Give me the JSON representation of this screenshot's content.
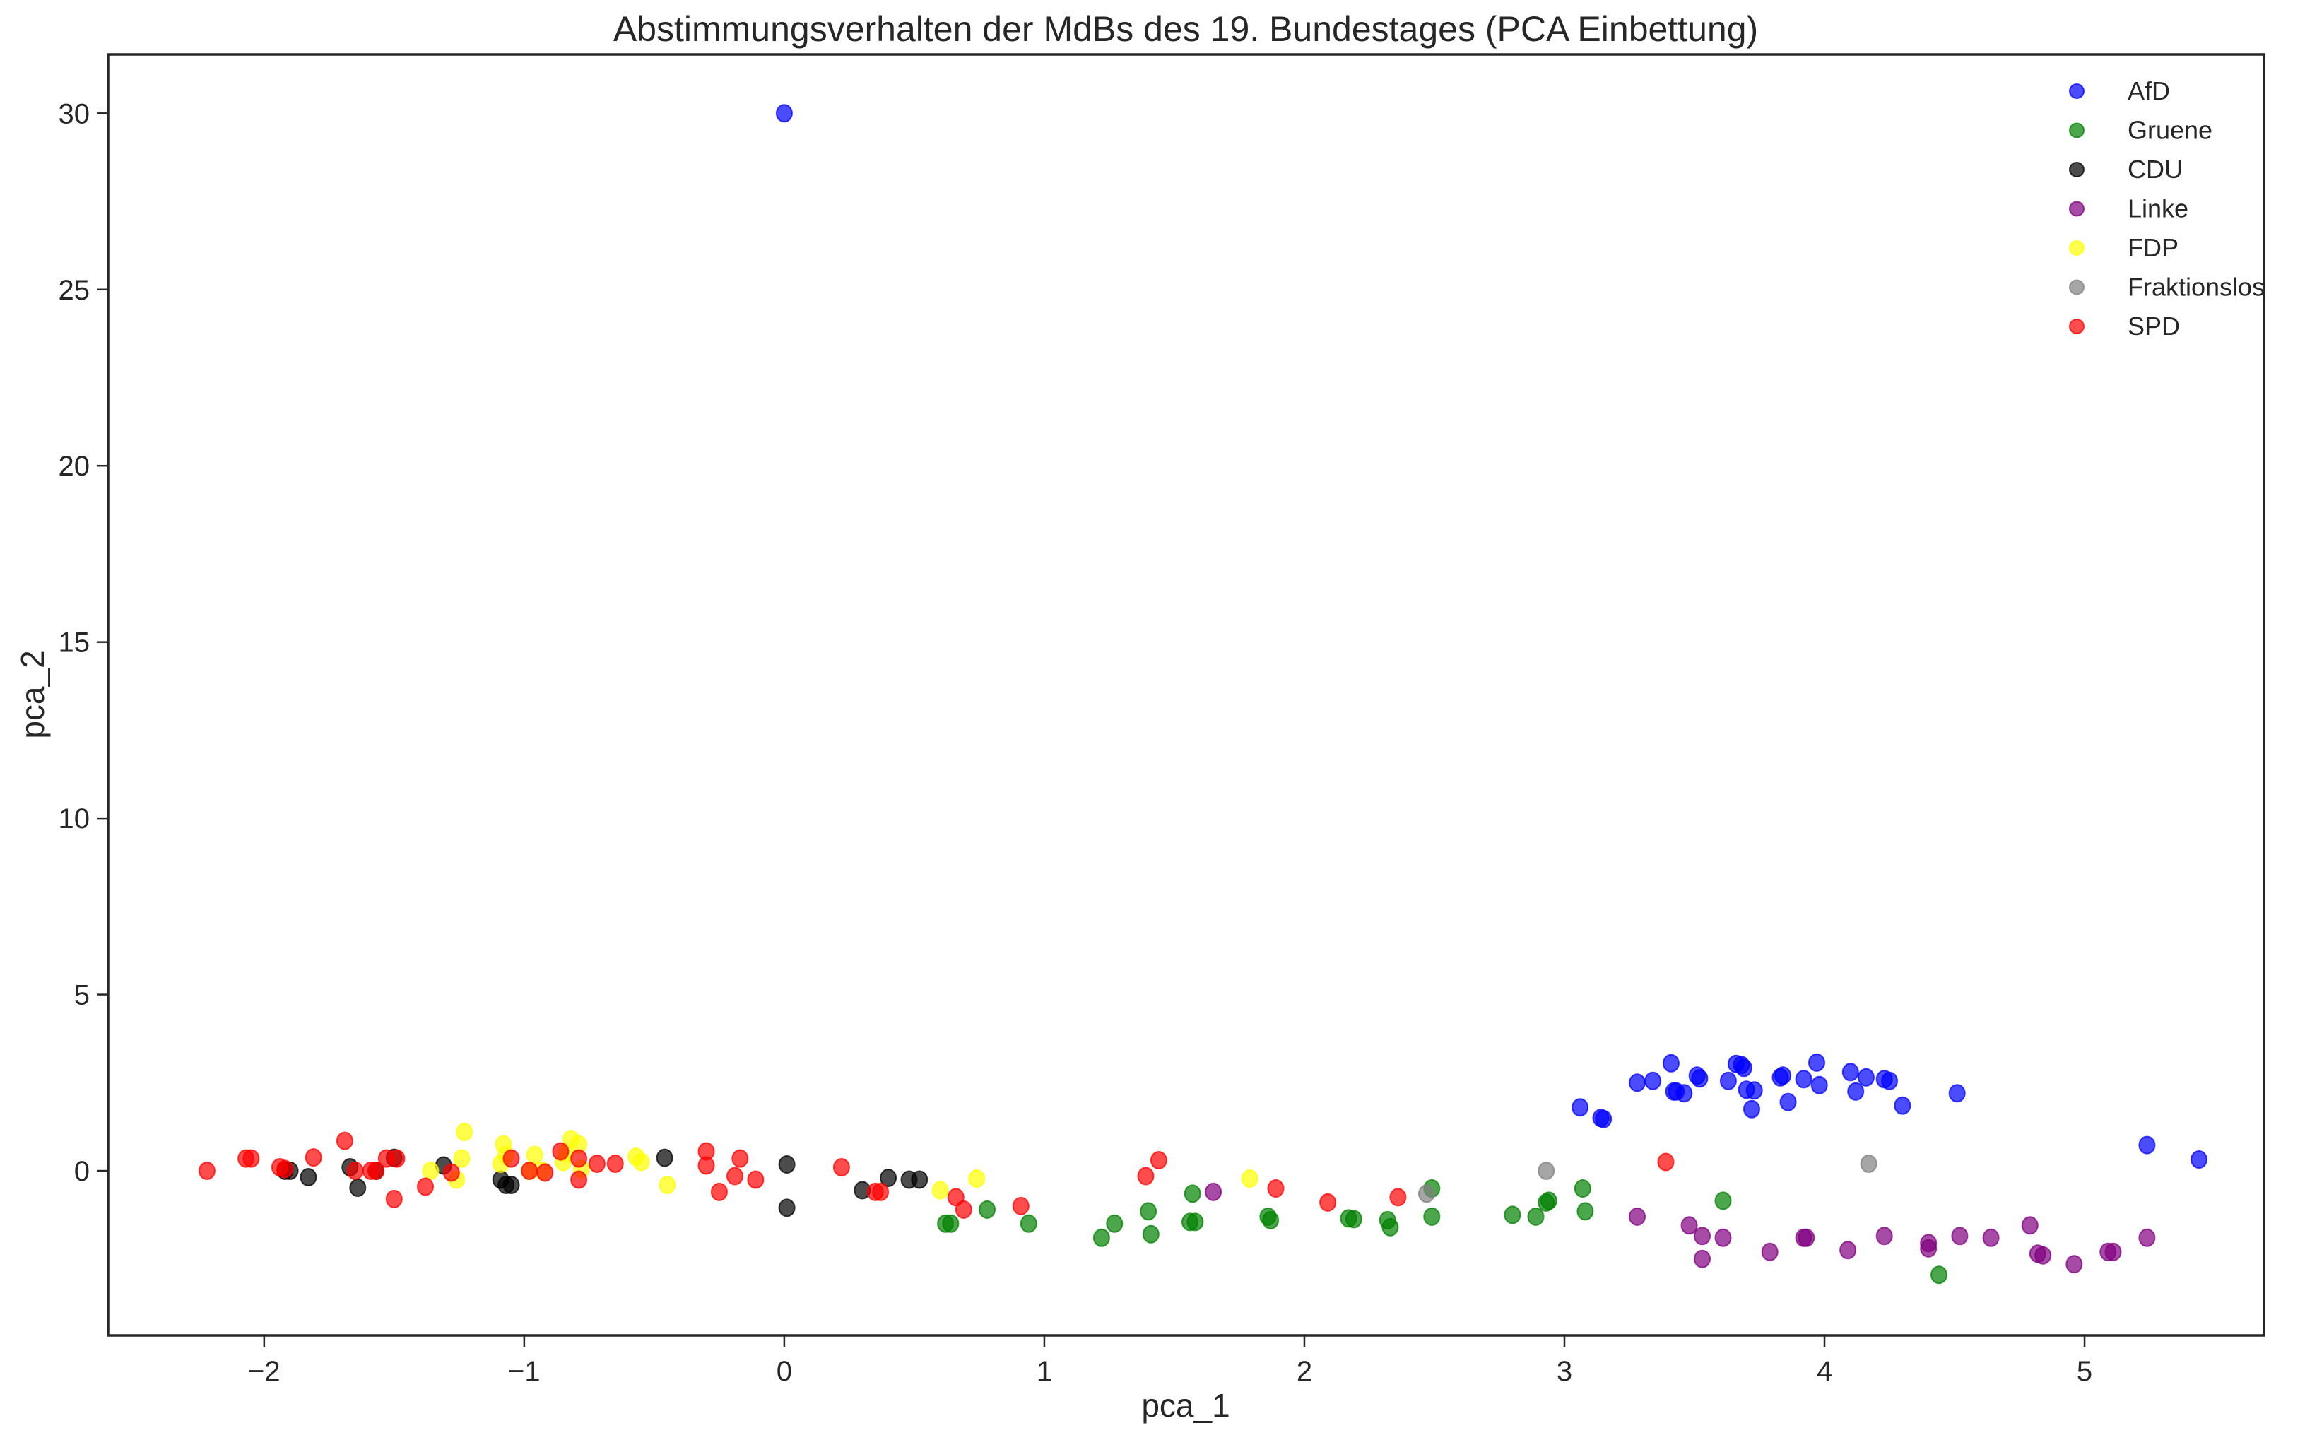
{
  "chart_data": {
    "type": "scatter",
    "title": "Abstimmungsverhalten der MdBs des 19. Bundestages (PCA Einbettung)",
    "xlabel": "pca_1",
    "ylabel": "pca_2",
    "xlim": [
      -2.6,
      5.69
    ],
    "ylim": [
      -4.67,
      31.67
    ],
    "x_ticks": [
      -2,
      -1,
      0,
      1,
      2,
      3,
      4,
      5
    ],
    "x_tick_labels": [
      "−2",
      "−1",
      "0",
      "1",
      "2",
      "3",
      "4",
      "5"
    ],
    "y_ticks": [
      0,
      5,
      10,
      15,
      20,
      25,
      30
    ],
    "y_tick_labels": [
      "0",
      "5",
      "10",
      "15",
      "20",
      "25",
      "30"
    ],
    "grid": false,
    "legend_position": "upper right",
    "marker_alpha": 0.7,
    "series": [
      {
        "name": "AfD",
        "color": "#0000ff",
        "points": [
          [
            0.0,
            30.0
          ],
          [
            3.06,
            1.8
          ],
          [
            3.14,
            1.5
          ],
          [
            3.15,
            1.47
          ],
          [
            3.28,
            2.5
          ],
          [
            3.34,
            2.55
          ],
          [
            3.41,
            3.05
          ],
          [
            3.42,
            2.25
          ],
          [
            3.43,
            2.25
          ],
          [
            3.46,
            2.2
          ],
          [
            3.51,
            2.7
          ],
          [
            3.52,
            2.62
          ],
          [
            3.63,
            2.55
          ],
          [
            3.66,
            3.03
          ],
          [
            3.68,
            3.0
          ],
          [
            3.69,
            2.92
          ],
          [
            3.7,
            2.3
          ],
          [
            3.72,
            1.75
          ],
          [
            3.73,
            2.28
          ],
          [
            3.83,
            2.65
          ],
          [
            3.84,
            2.7
          ],
          [
            3.86,
            1.95
          ],
          [
            3.92,
            2.6
          ],
          [
            3.97,
            3.07
          ],
          [
            3.98,
            2.43
          ],
          [
            4.1,
            2.8
          ],
          [
            4.12,
            2.25
          ],
          [
            4.16,
            2.65
          ],
          [
            4.23,
            2.6
          ],
          [
            4.25,
            2.55
          ],
          [
            4.3,
            1.85
          ],
          [
            4.51,
            2.2
          ],
          [
            5.24,
            0.73
          ],
          [
            5.44,
            0.32
          ]
        ]
      },
      {
        "name": "Gruene",
        "color": "#008000",
        "points": [
          [
            0.62,
            -1.5
          ],
          [
            0.64,
            -1.5
          ],
          [
            0.78,
            -1.1
          ],
          [
            0.94,
            -1.5
          ],
          [
            1.22,
            -1.9
          ],
          [
            1.27,
            -1.5
          ],
          [
            1.4,
            -1.15
          ],
          [
            1.41,
            -1.8
          ],
          [
            1.56,
            -1.45
          ],
          [
            1.57,
            -0.65
          ],
          [
            1.58,
            -1.45
          ],
          [
            1.86,
            -1.3
          ],
          [
            1.87,
            -1.4
          ],
          [
            2.17,
            -1.35
          ],
          [
            2.19,
            -1.37
          ],
          [
            2.32,
            -1.4
          ],
          [
            2.33,
            -1.6
          ],
          [
            2.49,
            -0.5
          ],
          [
            2.49,
            -1.3
          ],
          [
            2.8,
            -1.25
          ],
          [
            2.89,
            -1.3
          ],
          [
            2.93,
            -0.9
          ],
          [
            2.94,
            -0.85
          ],
          [
            3.07,
            -0.5
          ],
          [
            3.08,
            -1.15
          ],
          [
            3.61,
            -0.85
          ],
          [
            4.44,
            -2.95
          ]
        ]
      },
      {
        "name": "CDU",
        "color": "#000000",
        "points": [
          [
            -1.92,
            0.0
          ],
          [
            -1.9,
            0.0
          ],
          [
            -1.83,
            -0.18
          ],
          [
            -1.67,
            0.1
          ],
          [
            -1.64,
            -0.48
          ],
          [
            -1.57,
            0.0
          ],
          [
            -1.5,
            0.37
          ],
          [
            -1.31,
            0.15
          ],
          [
            -1.09,
            -0.25
          ],
          [
            -1.07,
            -0.4
          ],
          [
            -1.05,
            -0.4
          ],
          [
            -0.46,
            0.37
          ],
          [
            0.01,
            0.18
          ],
          [
            0.01,
            -1.05
          ],
          [
            0.3,
            -0.55
          ],
          [
            0.4,
            -0.2
          ],
          [
            0.48,
            -0.25
          ],
          [
            0.52,
            -0.25
          ]
        ]
      },
      {
        "name": "Linke",
        "color": "#800080",
        "points": [
          [
            1.65,
            -0.6
          ],
          [
            3.28,
            -1.3
          ],
          [
            3.48,
            -1.55
          ],
          [
            3.53,
            -1.85
          ],
          [
            3.53,
            -2.5
          ],
          [
            3.61,
            -1.9
          ],
          [
            3.79,
            -2.3
          ],
          [
            3.92,
            -1.9
          ],
          [
            3.93,
            -1.9
          ],
          [
            4.09,
            -2.25
          ],
          [
            4.23,
            -1.85
          ],
          [
            4.4,
            -2.05
          ],
          [
            4.4,
            -2.2
          ],
          [
            4.52,
            -1.85
          ],
          [
            4.64,
            -1.9
          ],
          [
            4.79,
            -1.55
          ],
          [
            4.82,
            -2.35
          ],
          [
            4.84,
            -2.4
          ],
          [
            4.96,
            -2.65
          ],
          [
            5.09,
            -2.3
          ],
          [
            5.11,
            -2.3
          ],
          [
            5.24,
            -1.9
          ]
        ]
      },
      {
        "name": "FDP",
        "color": "#ffff00",
        "points": [
          [
            -1.36,
            0.0
          ],
          [
            -1.26,
            -0.25
          ],
          [
            -1.24,
            0.35
          ],
          [
            -1.23,
            1.1
          ],
          [
            -1.09,
            0.2
          ],
          [
            -1.08,
            0.75
          ],
          [
            -1.07,
            0.45
          ],
          [
            -0.98,
            0.0
          ],
          [
            -0.96,
            0.45
          ],
          [
            -0.93,
            0.0
          ],
          [
            -0.85,
            0.25
          ],
          [
            -0.84,
            0.5
          ],
          [
            -0.82,
            0.9
          ],
          [
            -0.79,
            0.75
          ],
          [
            -0.78,
            0.05
          ],
          [
            -0.57,
            0.4
          ],
          [
            -0.55,
            0.25
          ],
          [
            -0.45,
            -0.4
          ],
          [
            0.6,
            -0.55
          ],
          [
            0.74,
            -0.22
          ],
          [
            1.79,
            -0.22
          ]
        ]
      },
      {
        "name": "Fraktionslos",
        "color": "#808080",
        "points": [
          [
            2.93,
            0.0
          ],
          [
            4.17,
            0.2
          ],
          [
            2.47,
            -0.65
          ]
        ]
      },
      {
        "name": "SPD",
        "color": "#ff0000",
        "points": [
          [
            -2.22,
            0.0
          ],
          [
            -2.07,
            0.35
          ],
          [
            -2.05,
            0.35
          ],
          [
            -1.94,
            0.1
          ],
          [
            -1.92,
            0.05
          ],
          [
            -1.81,
            0.38
          ],
          [
            -1.69,
            0.85
          ],
          [
            -1.65,
            0.0
          ],
          [
            -1.59,
            0.0
          ],
          [
            -1.57,
            0.0
          ],
          [
            -1.53,
            0.35
          ],
          [
            -1.5,
            -0.8
          ],
          [
            -1.49,
            0.35
          ],
          [
            -1.38,
            -0.45
          ],
          [
            -1.28,
            -0.05
          ],
          [
            -1.05,
            0.35
          ],
          [
            -0.98,
            0.0
          ],
          [
            -0.92,
            -0.05
          ],
          [
            -0.86,
            0.55
          ],
          [
            -0.79,
            -0.25
          ],
          [
            -0.79,
            0.35
          ],
          [
            -0.72,
            0.2
          ],
          [
            -0.65,
            0.2
          ],
          [
            -0.3,
            0.55
          ],
          [
            -0.3,
            0.15
          ],
          [
            -0.25,
            -0.6
          ],
          [
            -0.19,
            -0.15
          ],
          [
            -0.17,
            0.35
          ],
          [
            -0.11,
            -0.25
          ],
          [
            0.22,
            0.1
          ],
          [
            0.35,
            -0.6
          ],
          [
            0.37,
            -0.6
          ],
          [
            0.66,
            -0.75
          ],
          [
            0.69,
            -1.1
          ],
          [
            0.91,
            -1.0
          ],
          [
            1.39,
            -0.15
          ],
          [
            1.44,
            0.3
          ],
          [
            1.89,
            -0.5
          ],
          [
            2.09,
            -0.9
          ],
          [
            2.36,
            -0.75
          ],
          [
            3.39,
            0.25
          ]
        ]
      }
    ]
  },
  "legend": {
    "items": [
      "AfD",
      "Gruene",
      "CDU",
      "Linke",
      "FDP",
      "Fraktionslos",
      "SPD"
    ]
  }
}
